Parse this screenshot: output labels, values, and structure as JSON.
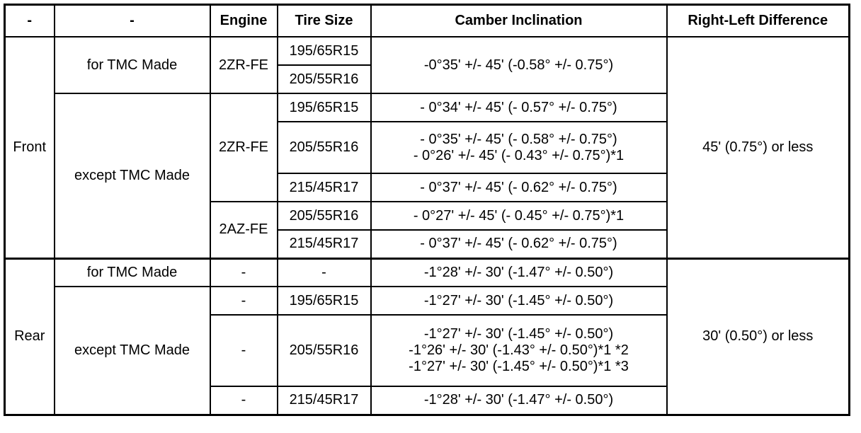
{
  "headers": [
    "-",
    "-",
    "Engine",
    "Tire Size",
    "Camber Inclination",
    "Right-Left Difference"
  ],
  "front": {
    "position": "Front",
    "right_left": "45' (0.75°) or less",
    "tmc": {
      "label": "for TMC Made",
      "engine": "2ZR-FE",
      "tires": [
        "195/65R15",
        "205/55R16"
      ],
      "camber": "-0°35' +/- 45' (-0.58° +/- 0.75°)"
    },
    "except": {
      "label": "except TMC Made",
      "zr": {
        "engine": "2ZR-FE",
        "rows": [
          {
            "tire": "195/65R15",
            "camber": [
              "- 0°34' +/- 45' (- 0.57° +/- 0.75°)"
            ]
          },
          {
            "tire": "205/55R16",
            "camber": [
              "- 0°35' +/- 45' (- 0.58° +/- 0.75°)",
              "- 0°26' +/- 45' (- 0.43° +/- 0.75°)*1"
            ]
          },
          {
            "tire": "215/45R17",
            "camber": [
              "- 0°37' +/- 45' (- 0.62° +/- 0.75°)"
            ]
          }
        ]
      },
      "az": {
        "engine": "2AZ-FE",
        "rows": [
          {
            "tire": "205/55R16",
            "camber": [
              "- 0°27' +/- 45' (- 0.45° +/- 0.75°)*1"
            ]
          },
          {
            "tire": "215/45R17",
            "camber": [
              "- 0°37' +/- 45' (- 0.62° +/- 0.75°)"
            ]
          }
        ]
      }
    }
  },
  "rear": {
    "position": "Rear",
    "right_left": "30' (0.50°) or less",
    "tmc": {
      "label": "for TMC Made",
      "engine": "-",
      "tire": "-",
      "camber": "-1°28' +/- 30' (-1.47° +/- 0.50°)"
    },
    "except": {
      "label": "except TMC Made",
      "rows": [
        {
          "engine": "-",
          "tire": "195/65R15",
          "camber": [
            "-1°27' +/- 30' (-1.45° +/- 0.50°)"
          ]
        },
        {
          "engine": "-",
          "tire": "205/55R16",
          "camber": [
            "-1°27' +/- 30' (-1.45° +/- 0.50°)",
            "-1°26' +/- 30' (-1.43° +/- 0.50°)*1 *2",
            "-1°27' +/- 30' (-1.45° +/- 0.50°)*1 *3"
          ]
        },
        {
          "engine": "-",
          "tire": "215/45R17",
          "camber": [
            "-1°28' +/- 30' (-1.47° +/- 0.50°)"
          ]
        }
      ]
    }
  }
}
